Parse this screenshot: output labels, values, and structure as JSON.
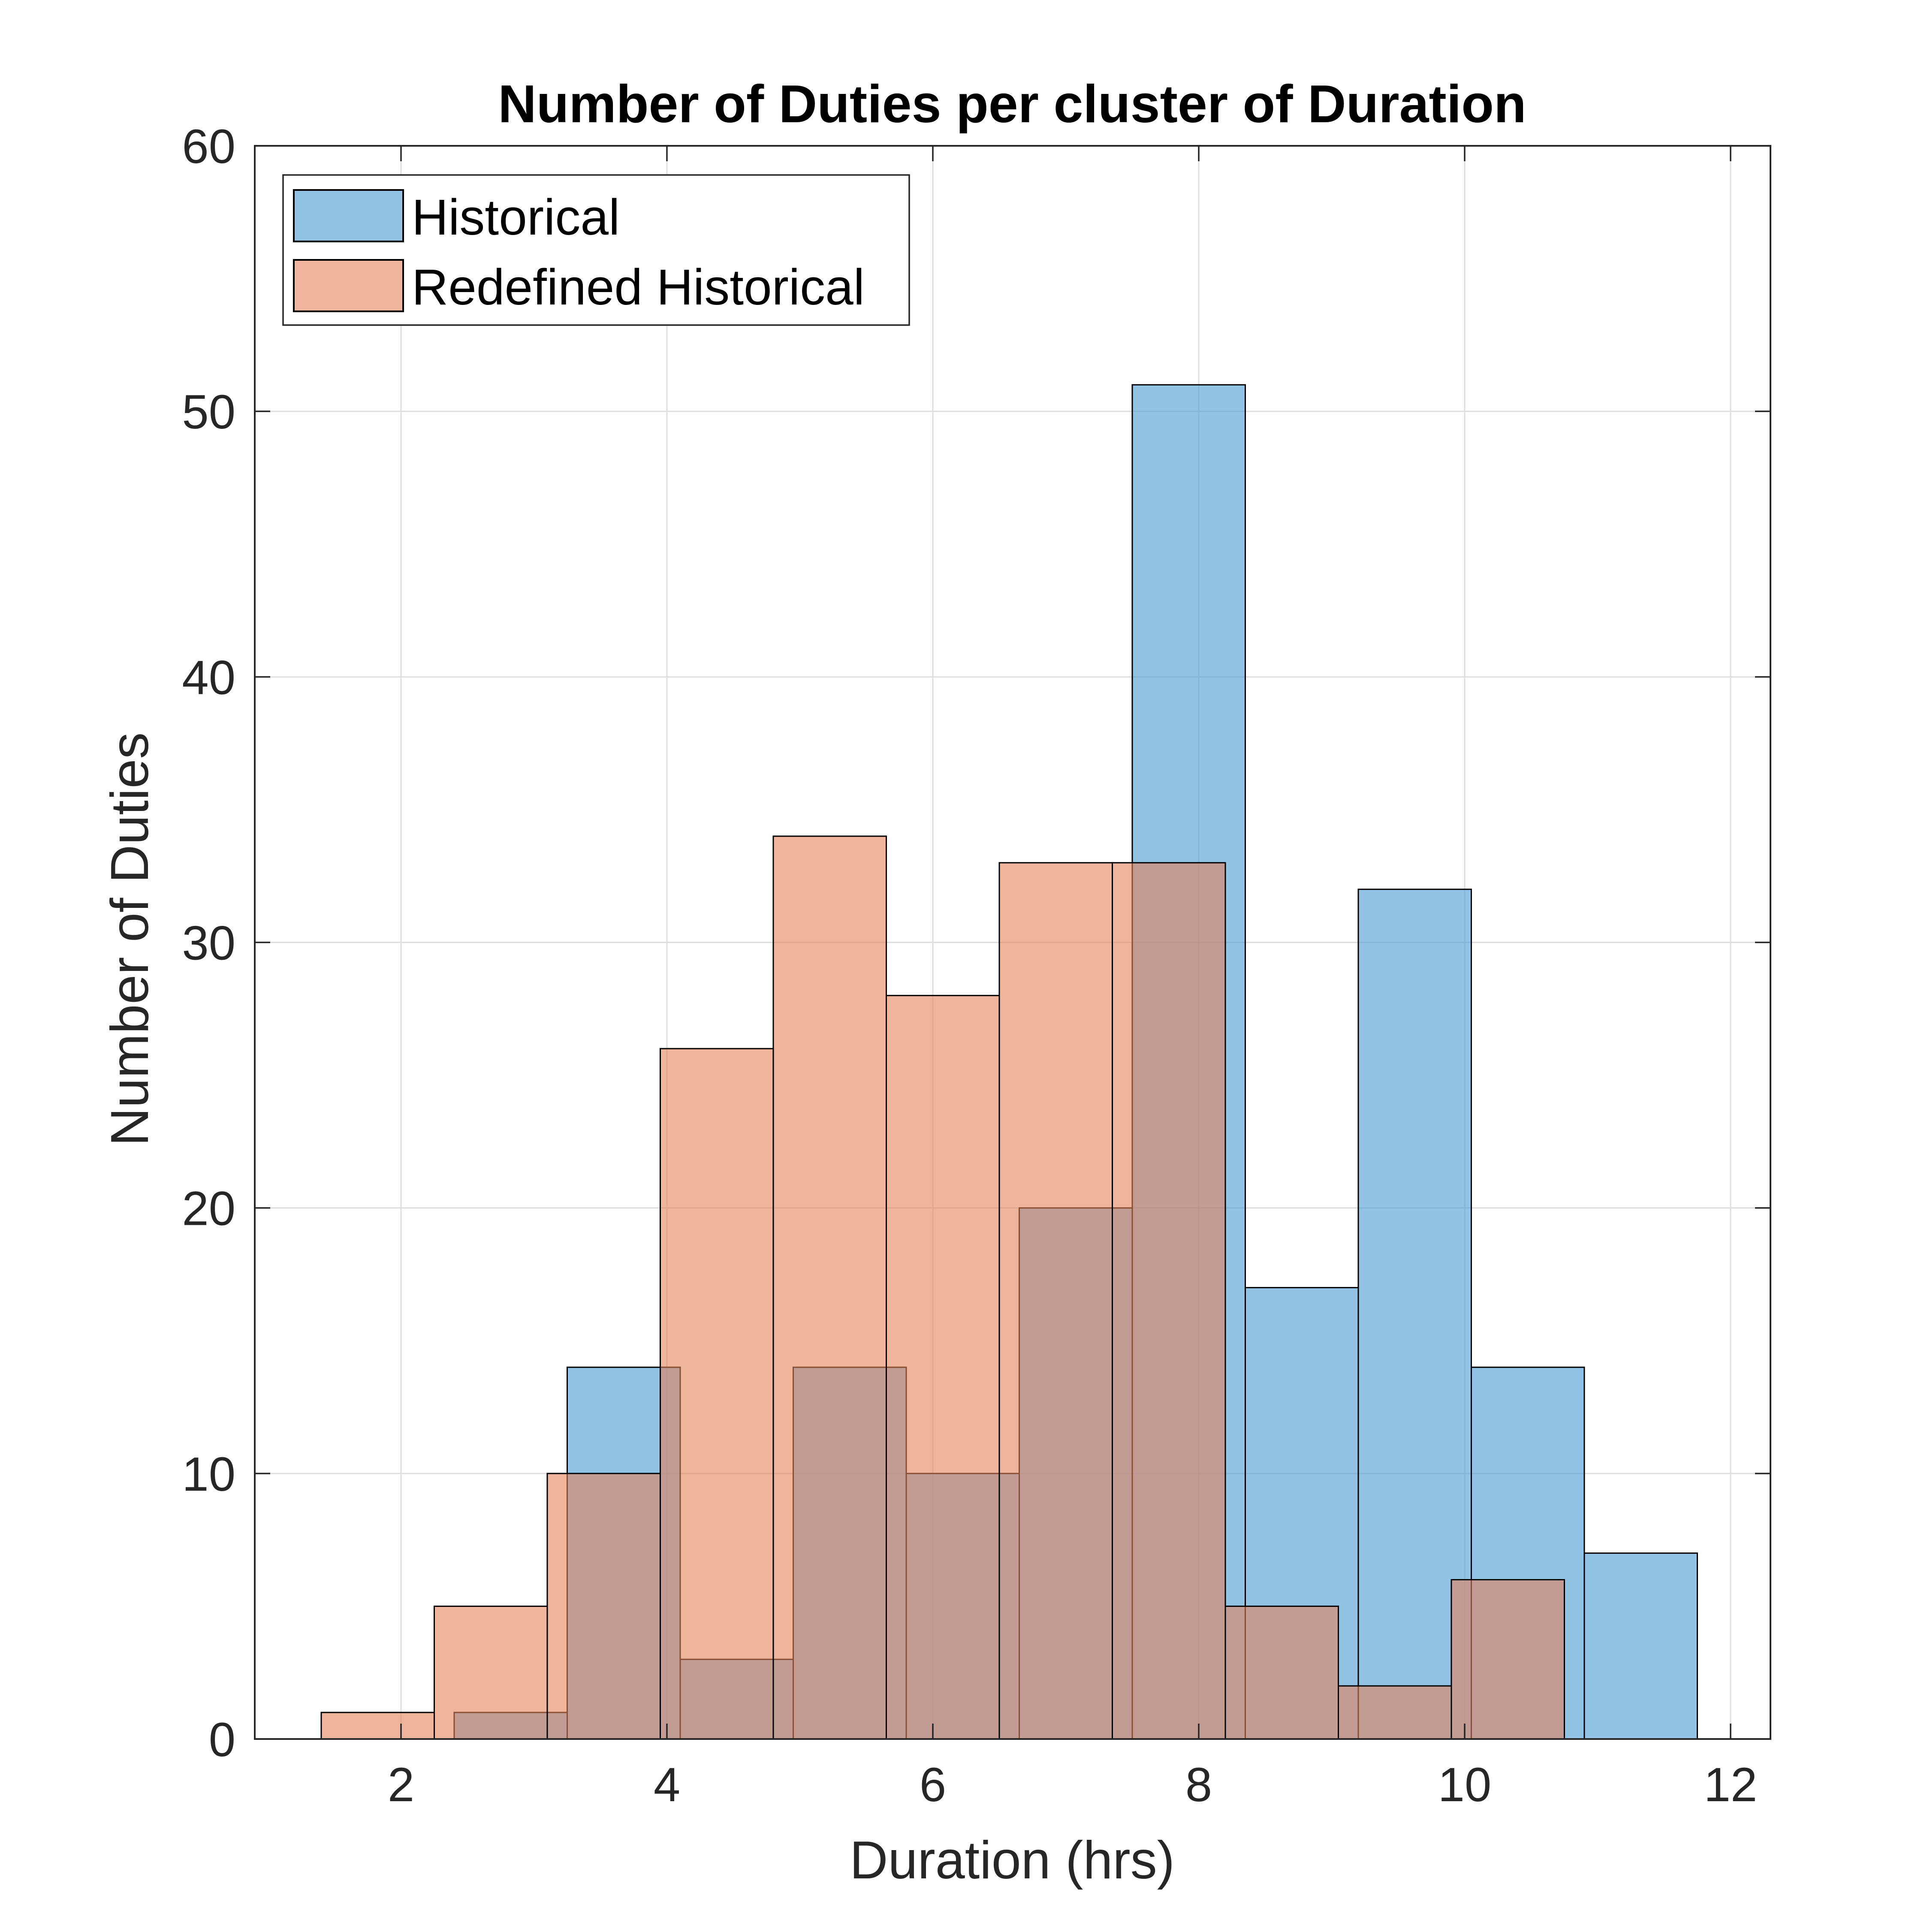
{
  "chart_data": {
    "type": "bar",
    "title": "Number of Duties per cluster of Duration",
    "xlabel": "Duration (hrs)",
    "ylabel": "Number of Duties",
    "xlim": [
      0.9,
      12.3
    ],
    "ylim": [
      0,
      60
    ],
    "xticks": [
      2,
      4,
      6,
      8,
      10,
      12
    ],
    "yticks": [
      0,
      10,
      20,
      30,
      40,
      50,
      60
    ],
    "grid": true,
    "legend_position": "top-left",
    "series": [
      {
        "name": "Historical",
        "color": "#4A9BD4",
        "opacity": 0.6,
        "bins": [
          {
            "x0": 2.4,
            "x1": 3.25,
            "count": 1
          },
          {
            "x0": 3.25,
            "x1": 4.1,
            "count": 14
          },
          {
            "x0": 4.1,
            "x1": 4.95,
            "count": 3
          },
          {
            "x0": 4.95,
            "x1": 5.8,
            "count": 14
          },
          {
            "x0": 5.8,
            "x1": 6.65,
            "count": 10
          },
          {
            "x0": 6.65,
            "x1": 7.5,
            "count": 20
          },
          {
            "x0": 7.5,
            "x1": 8.35,
            "count": 51
          },
          {
            "x0": 8.35,
            "x1": 9.2,
            "count": 17
          },
          {
            "x0": 9.2,
            "x1": 10.05,
            "count": 32
          },
          {
            "x0": 10.05,
            "x1": 10.9,
            "count": 14
          },
          {
            "x0": 10.9,
            "x1": 11.75,
            "count": 7
          }
        ]
      },
      {
        "name": "Redefined Historical",
        "color": "#E3825A",
        "opacity": 0.6,
        "bins": [
          {
            "x0": 1.4,
            "x1": 2.25,
            "count": 1
          },
          {
            "x0": 2.25,
            "x1": 3.1,
            "count": 5
          },
          {
            "x0": 3.1,
            "x1": 3.95,
            "count": 10
          },
          {
            "x0": 3.95,
            "x1": 4.8,
            "count": 26
          },
          {
            "x0": 4.8,
            "x1": 5.65,
            "count": 34
          },
          {
            "x0": 5.65,
            "x1": 6.5,
            "count": 28
          },
          {
            "x0": 6.5,
            "x1": 7.35,
            "count": 33
          },
          {
            "x0": 7.35,
            "x1": 8.2,
            "count": 33
          },
          {
            "x0": 8.2,
            "x1": 9.05,
            "count": 5
          },
          {
            "x0": 9.05,
            "x1": 9.9,
            "count": 2
          },
          {
            "x0": 9.9,
            "x1": 10.75,
            "count": 6
          }
        ]
      }
    ]
  }
}
